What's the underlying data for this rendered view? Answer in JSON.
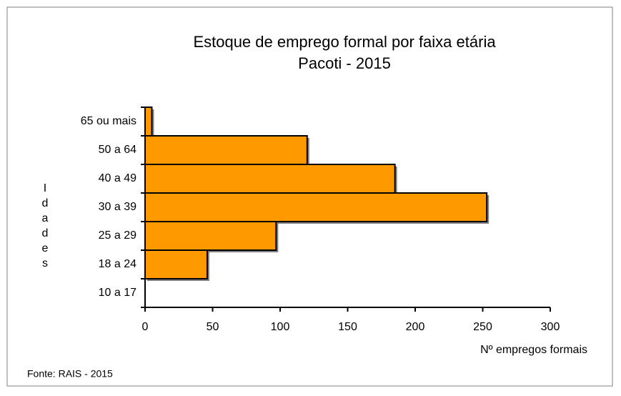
{
  "chart_data": {
    "type": "hbar",
    "title": "Estoque de emprego formal por faixa etária",
    "subtitle": "Pacoti - 2015",
    "y_label": "Idades",
    "x_label": "Nº empregos formais",
    "source": "Fonte: RAIS - 2015",
    "categories": [
      "65 ou mais",
      "50 a 64",
      "40 a 49",
      "30 a 39",
      "25 a 29",
      "18 a 24",
      "10 a 17"
    ],
    "values": [
      5,
      120,
      185,
      253,
      97,
      46,
      0
    ],
    "color": "#ff9900",
    "xlim": [
      0,
      300
    ],
    "xticks": [
      0,
      50,
      100,
      150,
      200,
      250,
      300
    ],
    "grid": false
  }
}
